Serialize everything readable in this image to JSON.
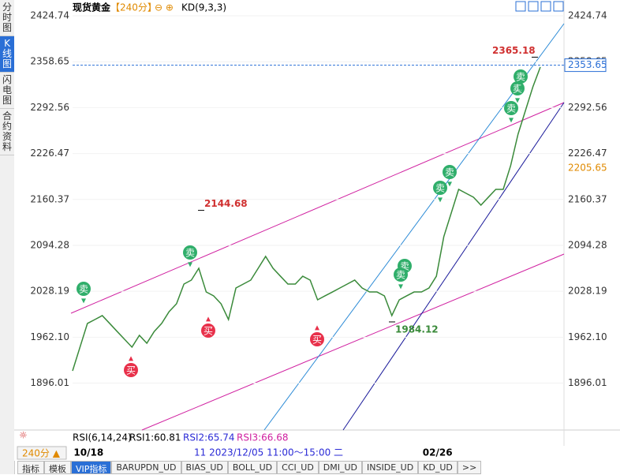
{
  "header": {
    "title": "现货黄金",
    "period": "【240分】",
    "indicator": "KD(9,3,3)"
  },
  "sidebar": [
    "分时图",
    "K线图",
    "闪电图",
    "合约资料"
  ],
  "chart_data": {
    "type": "line",
    "color": "#3a8a3a",
    "categories": [
      null,
      "10/18",
      null,
      null,
      null,
      null,
      null,
      null,
      null,
      null,
      null,
      null,
      null,
      null,
      null,
      null,
      null,
      null,
      null,
      null,
      null,
      null,
      null,
      null,
      null,
      null,
      null,
      null,
      null,
      null,
      null,
      null,
      null,
      null,
      null,
      null,
      null,
      null,
      null,
      null,
      null,
      null,
      null,
      null,
      null,
      null,
      null,
      null,
      "02/26",
      null,
      null,
      null,
      null,
      null,
      null,
      null,
      null,
      null,
      null,
      null,
      null,
      null,
      null,
      null
    ],
    "values": [
      1913.7,
      1947.8,
      1981.9,
      1987.5,
      1993.2,
      1981.9,
      1970.4,
      1959.1,
      1947.8,
      1964.8,
      1953.4,
      1970.4,
      1981.9,
      1998.9,
      2010.2,
      2038.6,
      2044.3,
      2061.3,
      2027.2,
      2021.6,
      2010.2,
      1987.5,
      2032.9,
      2038.6,
      2044.3,
      2061.3,
      2078.4,
      2061.3,
      2049.9,
      2038.6,
      2038.6,
      2049.9,
      2044.3,
      2015.9,
      2021.6,
      2027.2,
      2032.9,
      2038.6,
      2044.3,
      2032.9,
      2027.2,
      2027.2,
      2021.6,
      1993.2,
      2015.9,
      2021.6,
      2027.2,
      2027.2,
      2032.9,
      2049.9,
      2106.8,
      2140.8,
      2174.9,
      2169.2,
      2163.6,
      2152.2,
      2163.6,
      2174.9,
      2174.9,
      2209.0,
      2254.4,
      2288.5,
      2322.5,
      2350.9
    ],
    "ylim": [
      1828.5,
      2436.1
    ],
    "yticks": [
      1896.01,
      {
        "value": 1962.1,
        "label": "1962.10"
      },
      2028.19,
      2094.28,
      2160.37,
      2226.47,
      2292.56,
      2358.65,
      2424.74
    ],
    "annotations": [
      {
        "value": 2365.18,
        "label": "2365.18"
      },
      {
        "value": 2144.68,
        "label": "2144.68"
      },
      {
        "value": 1984.12,
        "label": "1984.12"
      }
    ],
    "price_markers": [
      {
        "value": 2353.65,
        "label": "2353.65",
        "color": "#2a6fd6"
      },
      {
        "value": 2205.65,
        "label": "2205.65",
        "color": "#e08a00"
      }
    ],
    "signals": [
      "卖",
      "买",
      "卖",
      "买",
      "买",
      "卖",
      "卖",
      "卖",
      "卖",
      "卖",
      "卖",
      "卖"
    ],
    "crosshair": "11 2023/12/05 11:00～15:00 二"
  },
  "rsi": {
    "name": "RSI(6,14,24)",
    "r1": "RSI1:60.81",
    "r2": "RSI2:65.74",
    "r3": "RSI3:66.68"
  },
  "period_button": "240分 ▲",
  "tabs": [
    "指标",
    "模板",
    "VIP指标",
    "BARUPDN_UD",
    "BIAS_UD",
    "BOLL_UD",
    "CCI_UD",
    "DMI_UD",
    "INSIDE_UD",
    "KD_UD",
    ">>"
  ]
}
